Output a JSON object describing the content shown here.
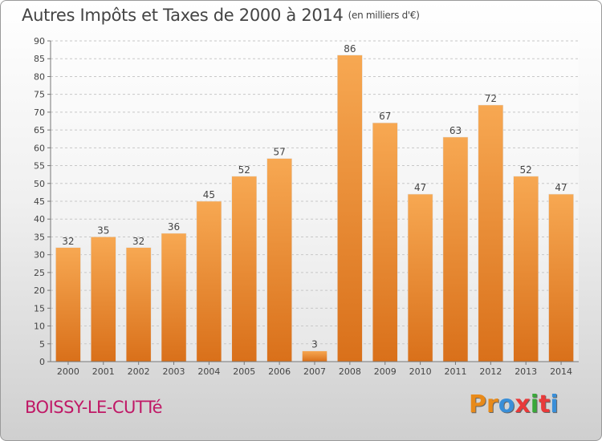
{
  "title": "Autres Impôts et Taxes de 2000 à 2014",
  "subtitle": "(en milliers d'€)",
  "commune": "BOISSY-LE-CUTTé",
  "logo": {
    "text": "Proxiti",
    "colors": [
      "#e88a1a",
      "#e88a1a",
      "#3a8fd8",
      "#e83a3a",
      "#3aa83a",
      "#e83a3a",
      "#3a8fd8"
    ]
  },
  "chart_data": {
    "type": "bar",
    "categories": [
      "2000",
      "2001",
      "2002",
      "2003",
      "2004",
      "2005",
      "2006",
      "2007",
      "2008",
      "2009",
      "2010",
      "2011",
      "2012",
      "2013",
      "2014"
    ],
    "values": [
      32,
      35,
      32,
      36,
      45,
      52,
      57,
      3,
      86,
      67,
      47,
      63,
      72,
      52,
      47
    ],
    "ylim": [
      0,
      90
    ],
    "yticks": [
      0,
      5,
      10,
      15,
      20,
      25,
      30,
      35,
      40,
      45,
      50,
      55,
      60,
      65,
      70,
      75,
      80,
      85,
      90
    ],
    "grid": true,
    "bar_color": "#f0922f"
  }
}
